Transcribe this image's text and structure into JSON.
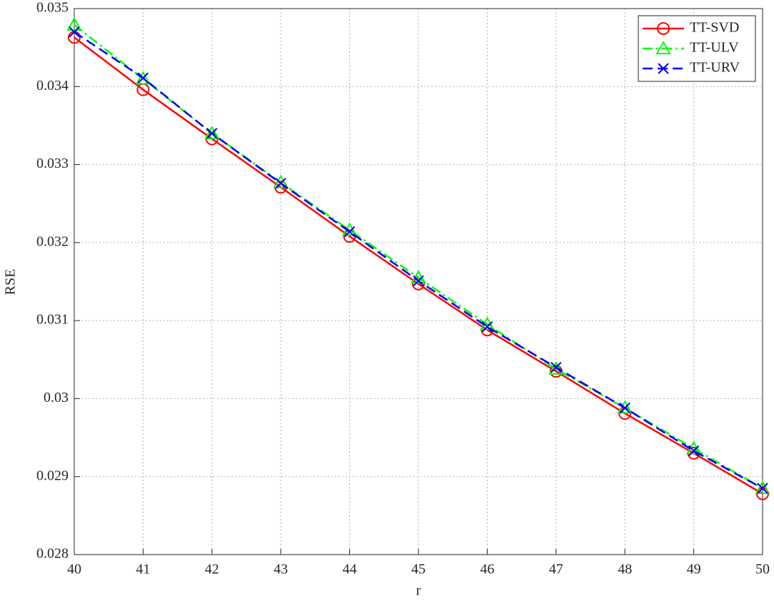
{
  "chart_data": {
    "type": "line",
    "x_label": "r",
    "y_label": "RSE",
    "x": [
      40,
      41,
      42,
      43,
      44,
      45,
      46,
      47,
      48,
      49,
      50
    ],
    "series": [
      {
        "name": "TT-SVD",
        "color": "#ff0000",
        "marker": "circle",
        "linestyle": "solid",
        "values": [
          0.03463,
          0.03396,
          0.03333,
          0.03271,
          0.03208,
          0.03147,
          0.03088,
          0.03035,
          0.02981,
          0.0293,
          0.02878
        ]
      },
      {
        "name": "TT-ULV",
        "color": "#00ff00",
        "marker": "triangle",
        "linestyle": "dashdot",
        "values": [
          0.03479,
          0.0341,
          0.0334,
          0.03277,
          0.03216,
          0.03155,
          0.03095,
          0.03038,
          0.02988,
          0.02936,
          0.02885
        ]
      },
      {
        "name": "TT-URV",
        "color": "#0000ff",
        "marker": "x",
        "linestyle": "dashed",
        "values": [
          0.0347,
          0.03411,
          0.0334,
          0.03276,
          0.03214,
          0.03151,
          0.03092,
          0.0304,
          0.02988,
          0.02933,
          0.02885
        ]
      }
    ],
    "xlim": [
      40,
      50
    ],
    "xticks": [
      40,
      41,
      42,
      43,
      44,
      45,
      46,
      47,
      48,
      49,
      50
    ],
    "ylim": [
      0.028,
      0.035
    ],
    "yticks": [
      0.028,
      0.029,
      0.03,
      0.031,
      0.032,
      0.033,
      0.034,
      0.035
    ],
    "grid": true,
    "legend": "top-right"
  }
}
